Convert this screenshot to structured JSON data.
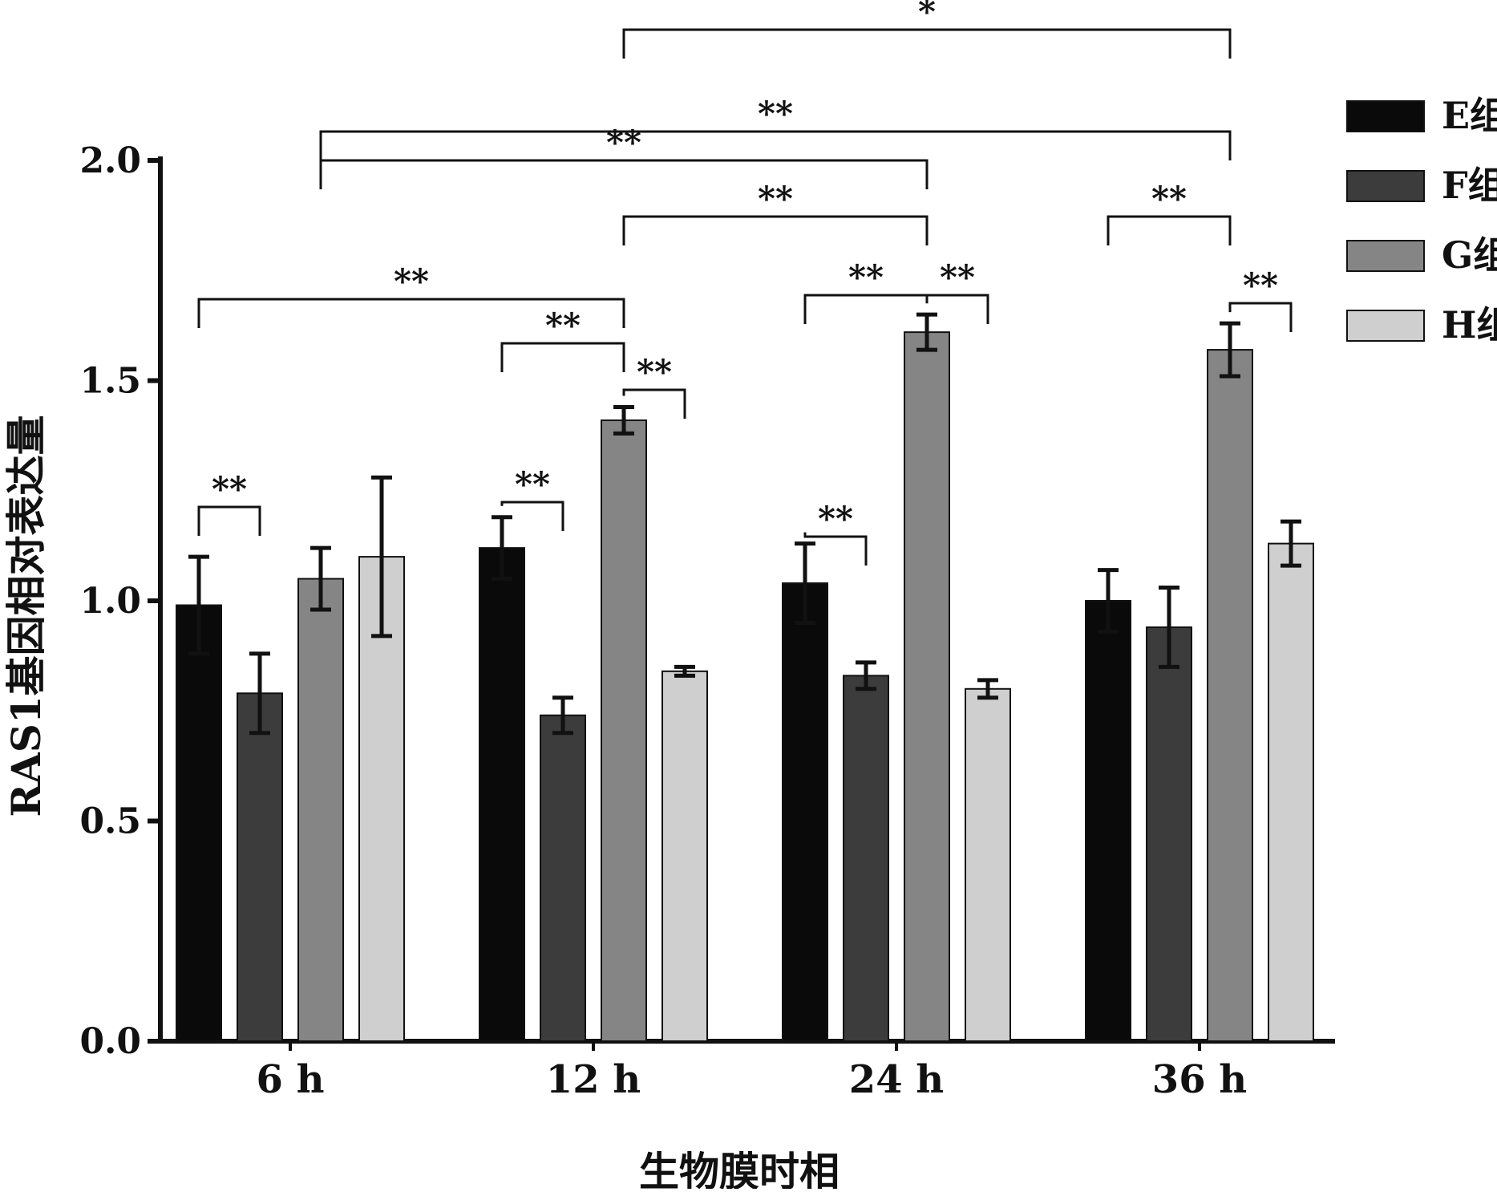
{
  "chart_data": {
    "type": "bar",
    "title": "",
    "xlabel": "生物膜时相",
    "ylabel": "RAS1基因相对表达量",
    "ylim": [
      0,
      2.0
    ],
    "yticks": [
      "0.0",
      "0.5",
      "1.0",
      "1.5",
      "2.0"
    ],
    "ytick_values": [
      0,
      0.5,
      1.0,
      1.5,
      2.0
    ],
    "categories": [
      "6 h",
      "12 h",
      "24 h",
      "36 h"
    ],
    "legend_position": "top-right",
    "grid": false,
    "series": [
      {
        "name": "E组",
        "color": "#0a0a0a",
        "values": [
          0.99,
          1.12,
          1.04,
          1.0
        ],
        "errors": [
          0.11,
          0.07,
          0.09,
          0.07
        ]
      },
      {
        "name": "F组",
        "color": "#3c3c3c",
        "values": [
          0.79,
          0.74,
          0.83,
          0.94
        ],
        "errors": [
          0.09,
          0.04,
          0.03,
          0.09
        ]
      },
      {
        "name": "G组",
        "color": "#858585",
        "values": [
          1.05,
          1.41,
          1.61,
          1.57
        ],
        "errors": [
          0.07,
          0.03,
          0.04,
          0.06
        ]
      },
      {
        "name": "H组",
        "color": "#cfcfcf",
        "values": [
          1.1,
          0.84,
          0.8,
          1.13
        ],
        "errors": [
          0.18,
          0.01,
          0.02,
          0.05
        ]
      }
    ],
    "significance": [
      {
        "from": [
          0,
          0
        ],
        "to": [
          0,
          1
        ],
        "label": "**"
      },
      {
        "from": [
          1,
          0
        ],
        "to": [
          1,
          1
        ],
        "label": "**"
      },
      {
        "from": [
          2,
          0
        ],
        "to": [
          2,
          1
        ],
        "label": "**"
      },
      {
        "from": [
          1,
          2
        ],
        "to": [
          1,
          3
        ],
        "label": "**"
      },
      {
        "from": [
          1,
          0
        ],
        "to": [
          1,
          2
        ],
        "label": "**"
      },
      {
        "from": [
          0,
          0
        ],
        "to": [
          1,
          2
        ],
        "label": "**"
      },
      {
        "from": [
          2,
          0
        ],
        "to": [
          2,
          2
        ],
        "label": "**"
      },
      {
        "from": [
          2,
          2
        ],
        "to": [
          2,
          3
        ],
        "label": "**"
      },
      {
        "from": [
          1,
          2
        ],
        "to": [
          2,
          2
        ],
        "label": "**"
      },
      {
        "from": [
          0,
          2
        ],
        "to": [
          2,
          2
        ],
        "label": "**"
      },
      {
        "from": [
          3,
          0
        ],
        "to": [
          3,
          2
        ],
        "label": "**"
      },
      {
        "from": [
          3,
          2
        ],
        "to": [
          3,
          3
        ],
        "label": "**"
      },
      {
        "from": [
          0,
          2
        ],
        "to": [
          3,
          2
        ],
        "label": "**"
      },
      {
        "from": [
          1,
          2
        ],
        "to": [
          3,
          2
        ],
        "label": "*"
      }
    ]
  }
}
